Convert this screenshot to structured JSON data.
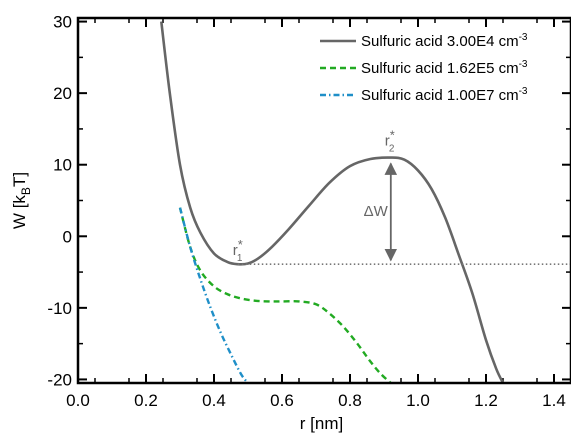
{
  "chart_data": {
    "type": "line",
    "xlabel": "r [nm]",
    "ylabel": "W [k",
    "ylabel_sub": "B",
    "ylabel_tail": "T]",
    "xlim": [
      0.0,
      1.45
    ],
    "ylim": [
      -20.5,
      30.5
    ],
    "xticks": [
      0.0,
      0.2,
      0.4,
      0.6,
      0.8,
      1.0,
      1.2,
      1.4
    ],
    "xtick_labels": [
      "0.0",
      "0.2",
      "0.4",
      "0.6",
      "0.8",
      "1.0",
      "1.2",
      "1.4"
    ],
    "yticks": [
      -20,
      -10,
      0,
      10,
      20,
      30
    ],
    "ytick_labels": [
      "-20",
      "-10",
      "0",
      "10",
      "20",
      "30"
    ],
    "grid": false,
    "legend_position": "top-right",
    "series": [
      {
        "name": "Sulfuric acid 3.00E4 cm",
        "unit_sup": "-3",
        "color": "#666666",
        "style": "solid",
        "x": [
          0.245,
          0.27,
          0.3,
          0.33,
          0.36,
          0.4,
          0.44,
          0.47,
          0.5,
          0.53,
          0.57,
          0.62,
          0.68,
          0.74,
          0.8,
          0.86,
          0.92,
          0.96,
          1.0,
          1.04,
          1.08,
          1.12,
          1.16,
          1.2,
          1.23,
          1.25
        ],
        "y": [
          30,
          20,
          10,
          4,
          0.5,
          -2.4,
          -3.6,
          -3.9,
          -3.8,
          -3.1,
          -1.5,
          1.0,
          4.3,
          7.5,
          9.8,
          10.8,
          11.0,
          10.7,
          9.2,
          6.6,
          2.6,
          -2.6,
          -8.0,
          -14.5,
          -18.5,
          -20.5
        ]
      },
      {
        "name": "Sulfuric acid 1.62E5 cm",
        "unit_sup": "-3",
        "color": "#22aa22",
        "style": "dashed",
        "x": [
          0.3,
          0.33,
          0.36,
          0.4,
          0.44,
          0.48,
          0.52,
          0.56,
          0.6,
          0.65,
          0.7,
          0.74,
          0.78,
          0.82,
          0.86,
          0.89,
          0.92
        ],
        "y": [
          4.0,
          -1.5,
          -4.8,
          -7.0,
          -8.1,
          -8.7,
          -9.0,
          -9.1,
          -9.1,
          -9.1,
          -9.5,
          -10.8,
          -12.6,
          -14.9,
          -17.5,
          -19.2,
          -20.5
        ]
      },
      {
        "name": "Sulfuric acid 1.00E7 cm",
        "unit_sup": "-3",
        "color": "#1f8fc8",
        "style": "dash-dot",
        "x": [
          0.3,
          0.33,
          0.36,
          0.39,
          0.42,
          0.45,
          0.48,
          0.5
        ],
        "y": [
          4.0,
          -1.5,
          -6.0,
          -10.0,
          -13.5,
          -16.5,
          -19.3,
          -20.5
        ]
      }
    ],
    "baseline": {
      "y": -3.9,
      "x_start": 0.47,
      "x_end": 1.45,
      "style": "dotted",
      "color": "#777777"
    },
    "annotations": {
      "r1_label": "r",
      "r1_sub": "1",
      "r1_sup": "*",
      "r1_x": 0.47,
      "r1_y": -3.9,
      "r2_label": "r",
      "r2_sub": "2",
      "r2_sup": "*",
      "r2_x": 0.92,
      "r2_y": 11.0,
      "delta_label": "ΔW",
      "delta_x": 0.92,
      "delta_top": 11.0,
      "delta_bottom": -3.9
    }
  }
}
